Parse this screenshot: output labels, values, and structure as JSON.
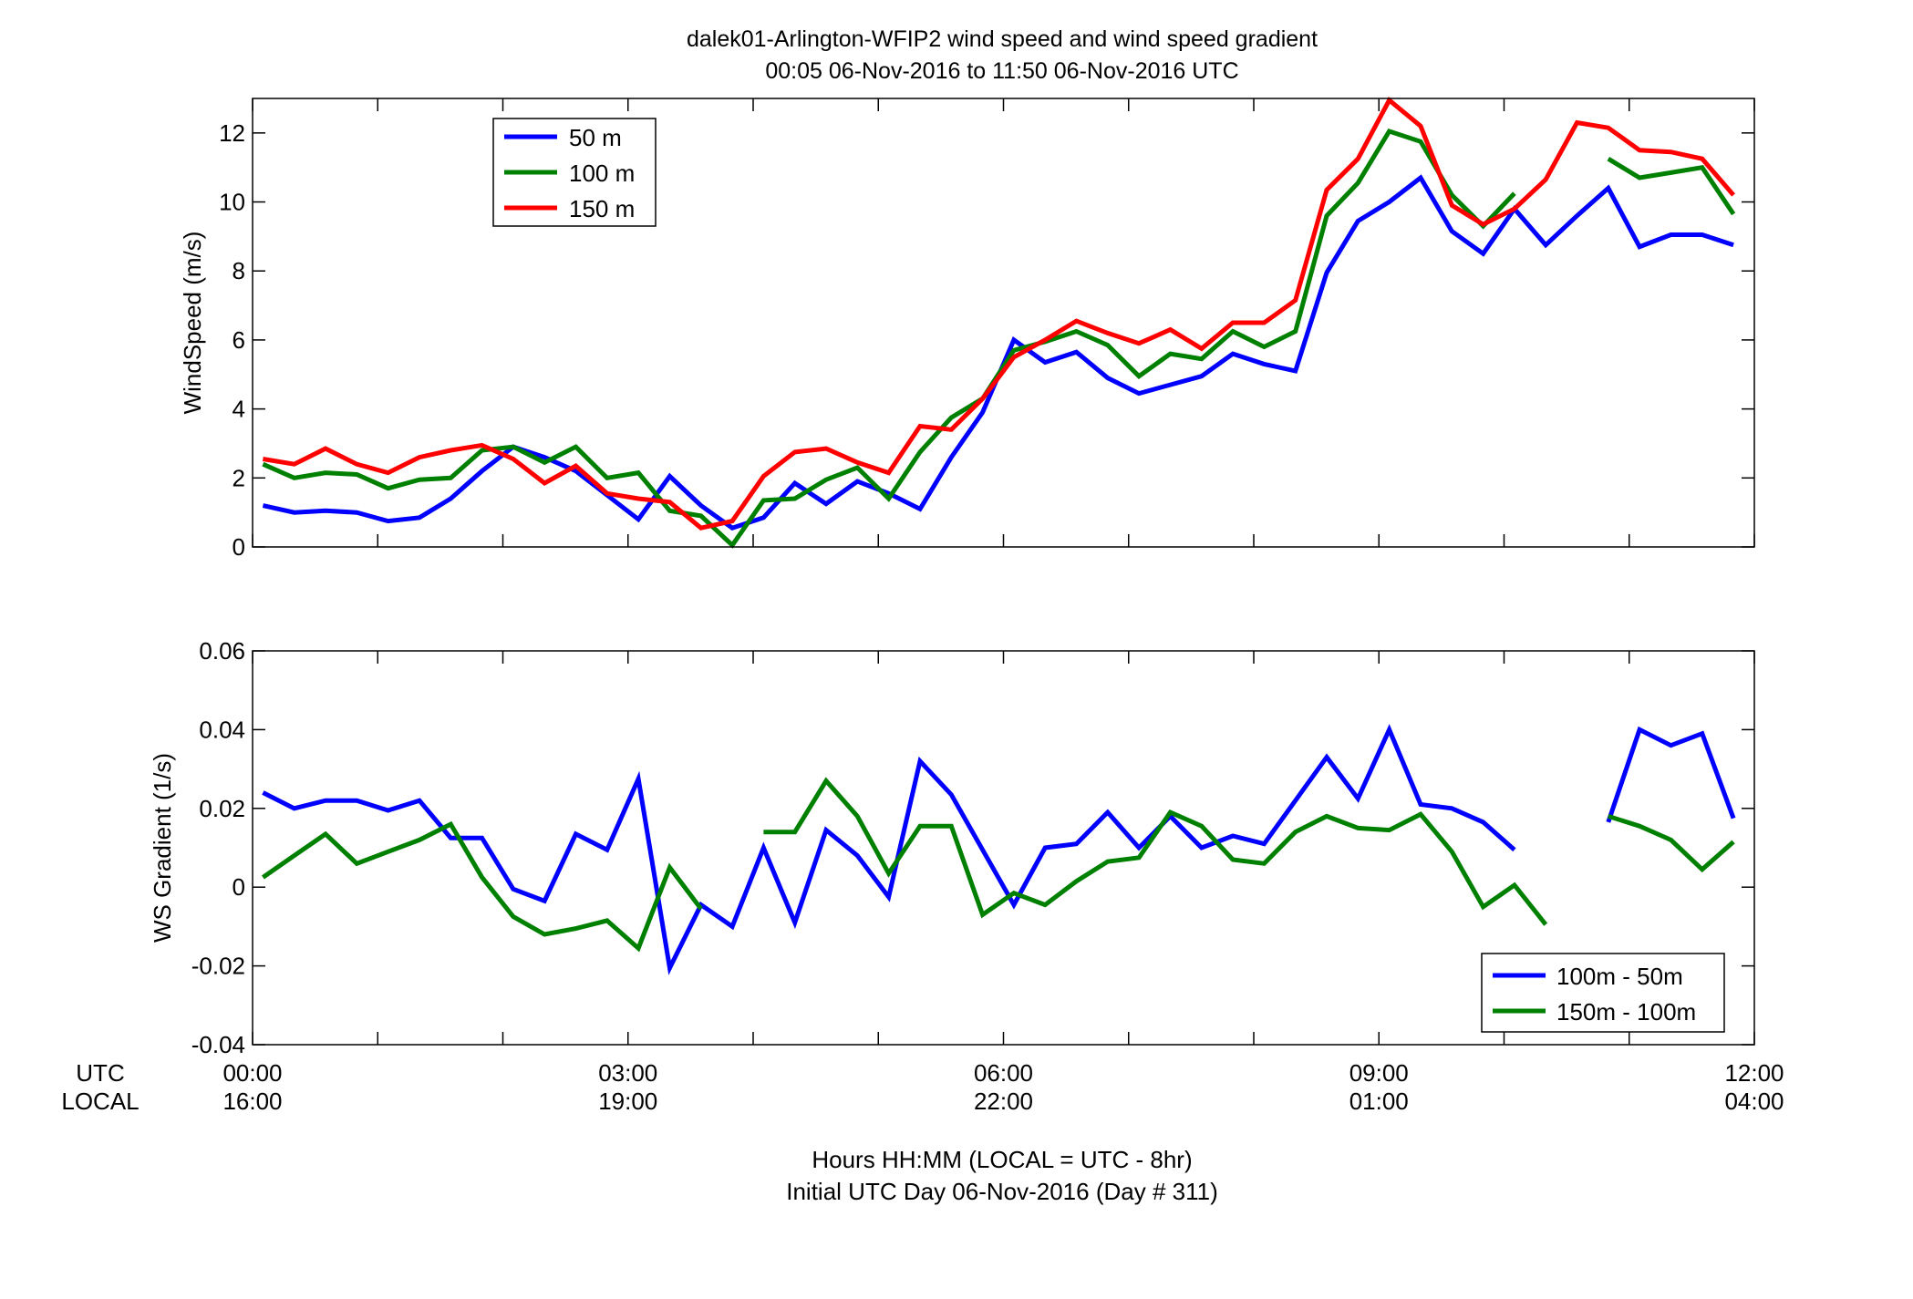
{
  "figure": {
    "title_line1": "dalek01-Arlington-WFIP2  wind speed and wind speed gradient",
    "title_line2": "00:05 06-Nov-2016 to 11:50 06-Nov-2016  UTC",
    "row_label_utc": "UTC",
    "row_label_local": "LOCAL",
    "footer_line1": "Hours HH:MM  (LOCAL = UTC - 8hr)",
    "footer_line2": "Initial UTC Day 06-Nov-2016 (Day # 311)",
    "x_ticks_utc": [
      "00:00",
      "03:00",
      "06:00",
      "09:00",
      "12:00"
    ],
    "x_ticks_local": [
      "16:00",
      "19:00",
      "22:00",
      "01:00",
      "04:00"
    ],
    "colors": {
      "blue": "#0000ff",
      "green": "#008000",
      "red": "#ff0000"
    }
  },
  "chart_data": [
    {
      "type": "line",
      "title": "",
      "xlabel": "",
      "ylabel": "WindSpeed (m/s)",
      "xlim": [
        0,
        12
      ],
      "ylim": [
        0,
        13
      ],
      "yticks": [
        "0",
        "2",
        "4",
        "6",
        "8",
        "10",
        "12"
      ],
      "grid": false,
      "legend_position": "top-left",
      "x_unit": "hours UTC",
      "x": [
        0.083,
        0.333,
        0.583,
        0.833,
        1.083,
        1.333,
        1.583,
        1.833,
        2.083,
        2.333,
        2.583,
        2.833,
        3.083,
        3.333,
        3.583,
        3.833,
        4.083,
        4.333,
        4.583,
        4.833,
        5.083,
        5.333,
        5.583,
        5.833,
        6.083,
        6.333,
        6.583,
        6.833,
        7.083,
        7.333,
        7.583,
        7.833,
        8.083,
        8.333,
        8.583,
        8.833,
        9.083,
        9.333,
        9.583,
        9.833,
        10.083,
        10.333,
        10.583,
        10.833,
        11.083,
        11.333,
        11.583,
        11.833
      ],
      "series": [
        {
          "name": "50 m",
          "color": "#0000ff",
          "values": [
            1.2,
            1.0,
            1.05,
            1.0,
            0.75,
            0.85,
            1.4,
            2.2,
            2.9,
            2.6,
            2.2,
            1.5,
            0.8,
            2.05,
            1.2,
            0.55,
            0.85,
            1.85,
            1.25,
            1.9,
            1.55,
            1.1,
            2.6,
            3.9,
            6.0,
            5.35,
            5.65,
            4.9,
            4.45,
            4.7,
            4.95,
            5.6,
            5.3,
            5.1,
            7.95,
            9.45,
            10.0,
            10.7,
            9.15,
            8.5,
            9.8,
            8.75,
            9.6,
            10.4,
            8.7,
            9.05,
            9.05,
            8.75
          ]
        },
        {
          "name": "100 m",
          "color": "#008000",
          "values": [
            2.4,
            2.0,
            2.15,
            2.1,
            1.7,
            1.95,
            2.0,
            2.8,
            2.9,
            2.45,
            2.9,
            2.0,
            2.15,
            1.05,
            0.9,
            0.05,
            1.35,
            1.4,
            1.95,
            2.3,
            1.4,
            2.75,
            3.75,
            4.3,
            5.7,
            5.95,
            6.25,
            5.85,
            4.95,
            5.6,
            5.45,
            6.25,
            5.8,
            6.25,
            9.6,
            10.55,
            12.05,
            11.75,
            10.2,
            9.3,
            10.25,
            null,
            null,
            11.25,
            10.7,
            10.85,
            11.0,
            9.65
          ]
        },
        {
          "name": "150 m",
          "color": "#ff0000",
          "values": [
            2.55,
            2.4,
            2.85,
            2.4,
            2.15,
            2.6,
            2.8,
            2.95,
            2.55,
            1.85,
            2.35,
            1.55,
            1.4,
            1.3,
            0.55,
            0.75,
            2.05,
            2.75,
            2.85,
            2.45,
            2.15,
            3.5,
            3.4,
            4.3,
            5.5,
            6.0,
            6.55,
            6.2,
            5.9,
            6.3,
            5.75,
            6.5,
            6.5,
            7.15,
            10.35,
            11.25,
            12.95,
            12.2,
            9.9,
            9.35,
            9.8,
            10.65,
            12.3,
            12.15,
            11.5,
            11.45,
            11.25,
            10.2
          ]
        }
      ]
    },
    {
      "type": "line",
      "title": "",
      "xlabel": "",
      "ylabel": "WS Gradient (1/s)",
      "xlim": [
        0,
        12
      ],
      "ylim": [
        -0.04,
        0.06
      ],
      "yticks": [
        "-0.04",
        "-0.02",
        "0",
        "0.02",
        "0.04",
        "0.06"
      ],
      "grid": false,
      "legend_position": "bottom-right",
      "x_unit": "hours UTC",
      "x": [
        0.083,
        0.333,
        0.583,
        0.833,
        1.083,
        1.333,
        1.583,
        1.833,
        2.083,
        2.333,
        2.583,
        2.833,
        3.083,
        3.333,
        3.583,
        3.833,
        4.083,
        4.333,
        4.583,
        4.833,
        5.083,
        5.333,
        5.583,
        5.833,
        6.083,
        6.333,
        6.583,
        6.833,
        7.083,
        7.333,
        7.583,
        7.833,
        8.083,
        8.333,
        8.583,
        8.833,
        9.083,
        9.333,
        9.583,
        9.833,
        10.083,
        10.333,
        10.583,
        10.833,
        11.083,
        11.333,
        11.583,
        11.833
      ],
      "series": [
        {
          "name": "100m - 50m",
          "color": "#0000ff",
          "values": [
            0.024,
            0.02,
            0.022,
            0.022,
            0.0195,
            0.022,
            0.0125,
            0.0125,
            -0.0005,
            -0.0035,
            0.0135,
            0.0095,
            0.0275,
            -0.0205,
            -0.0045,
            -0.01,
            0.01,
            -0.009,
            0.0145,
            0.008,
            -0.0025,
            0.032,
            0.0235,
            0.0095,
            -0.0045,
            0.01,
            0.011,
            0.019,
            0.01,
            0.018,
            0.01,
            0.013,
            0.011,
            0.022,
            0.033,
            0.0225,
            0.04,
            0.021,
            0.02,
            0.0165,
            0.0095,
            null,
            null,
            0.0165,
            0.04,
            0.036,
            0.039,
            0.0175
          ]
        },
        {
          "name": "150m - 100m",
          "color": "#008000",
          "values": [
            0.0025,
            0.008,
            0.0135,
            0.006,
            0.009,
            0.012,
            0.016,
            0.0025,
            -0.0075,
            -0.012,
            -0.0105,
            -0.0085,
            -0.0155,
            0.005,
            -0.0055,
            null,
            0.014,
            0.014,
            0.027,
            0.018,
            0.0035,
            0.0155,
            0.0155,
            -0.007,
            -0.0015,
            -0.0045,
            0.0015,
            0.0065,
            0.0075,
            0.019,
            0.0155,
            0.007,
            0.006,
            0.014,
            0.018,
            0.015,
            0.0145,
            0.0185,
            0.009,
            -0.005,
            0.0005,
            -0.0095,
            null,
            0.018,
            0.0155,
            0.012,
            0.0045,
            0.0115
          ]
        }
      ]
    }
  ]
}
